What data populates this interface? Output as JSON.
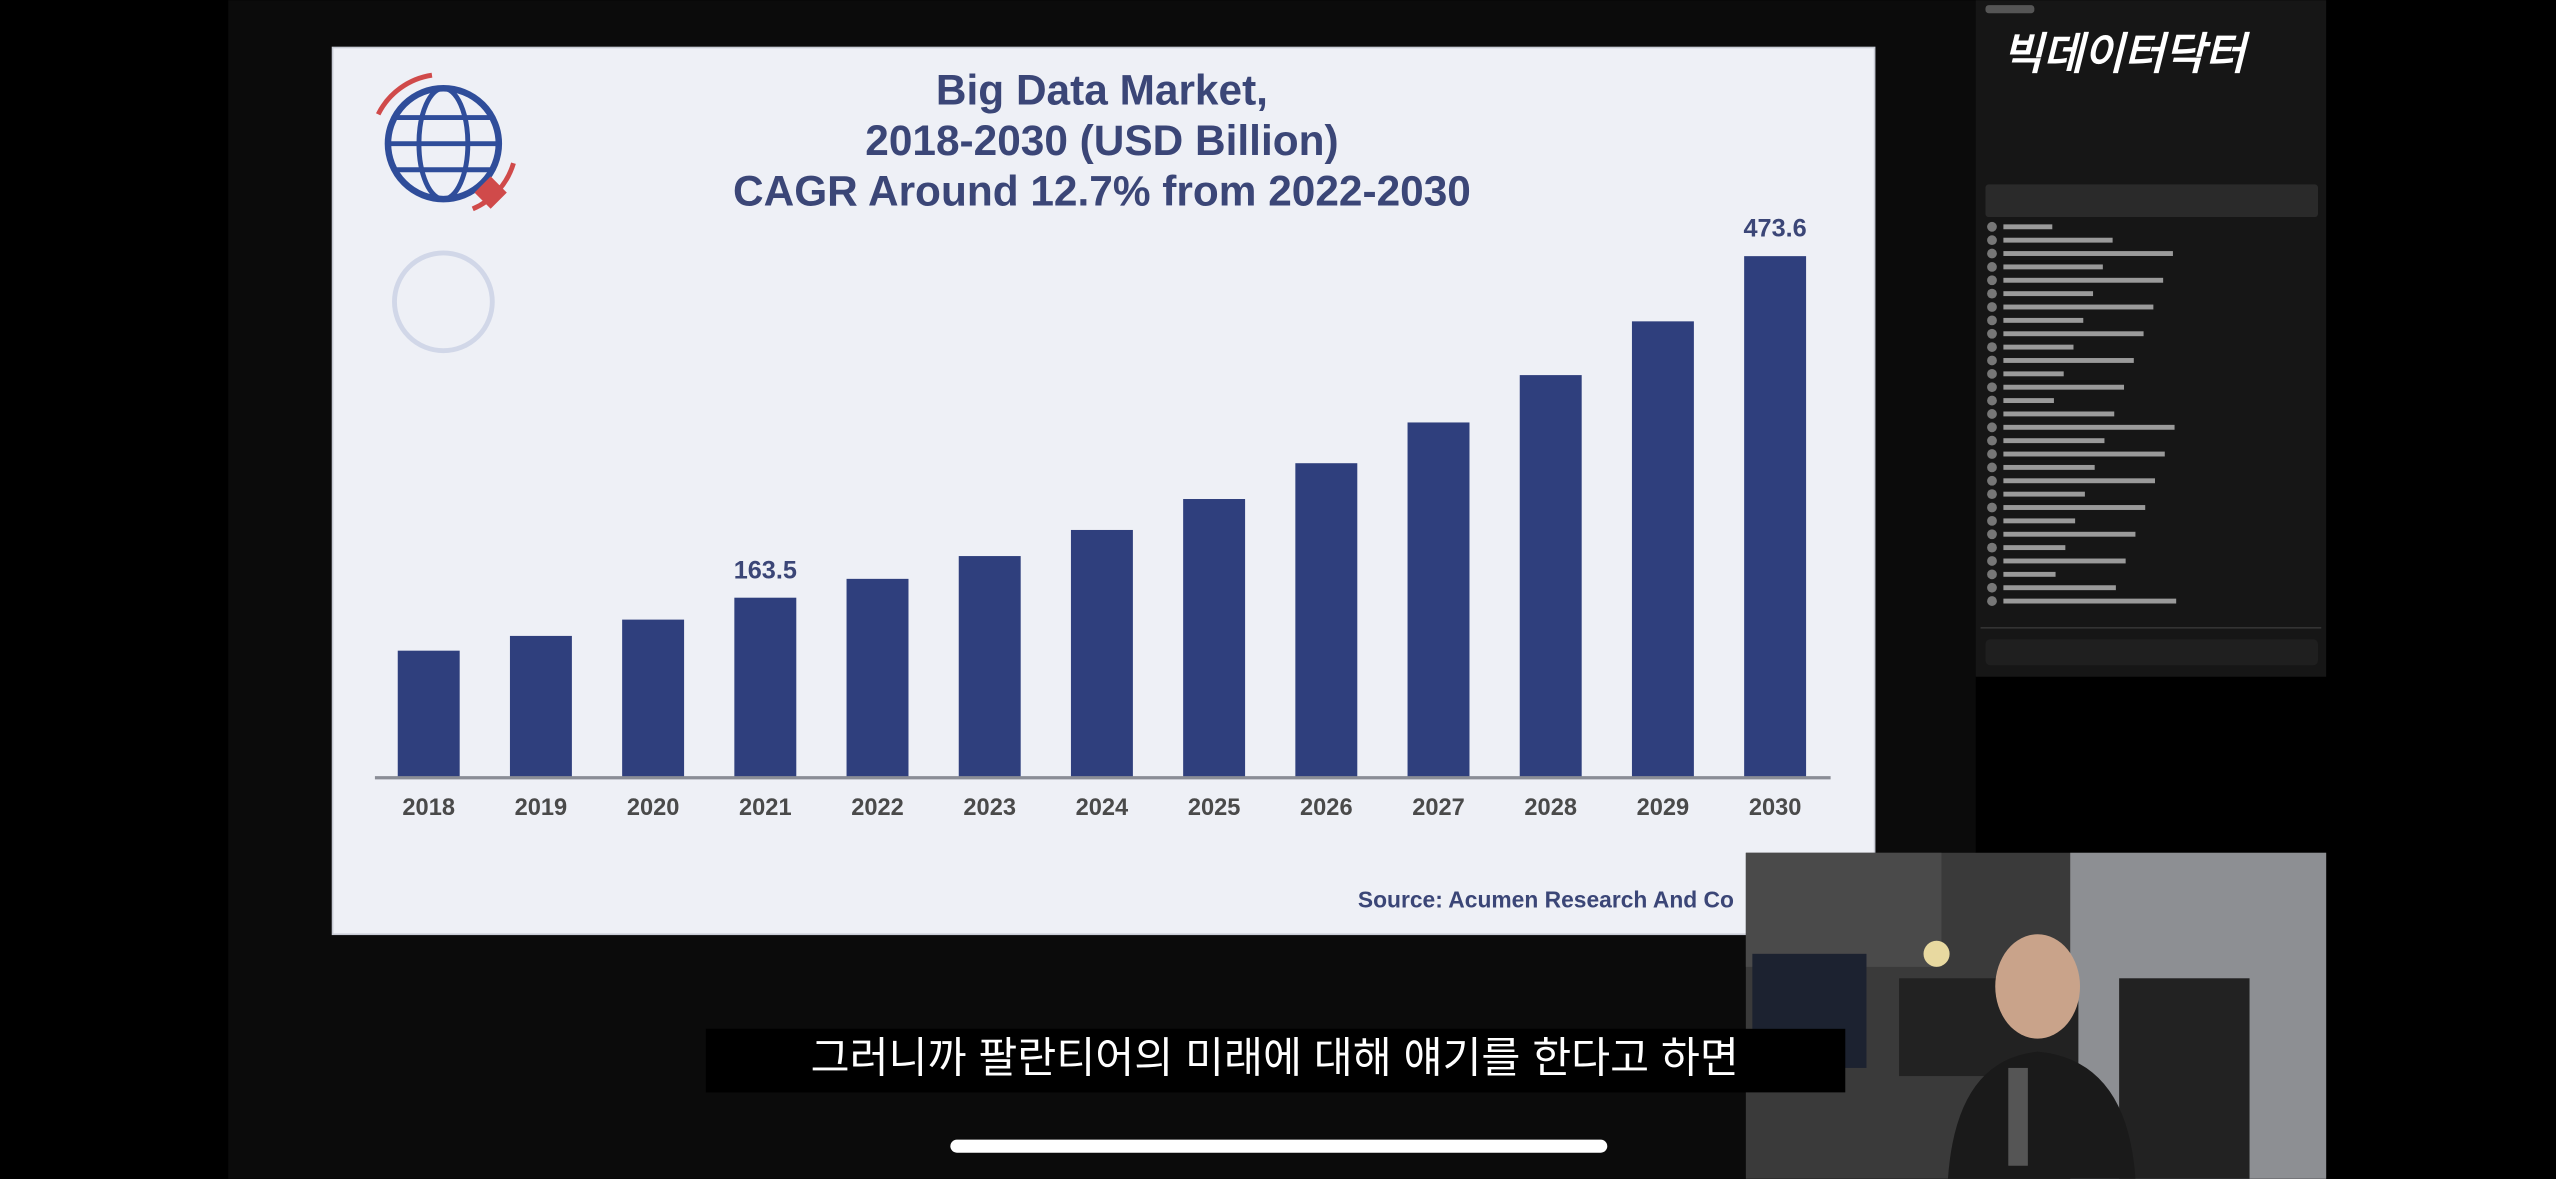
{
  "chart_data": {
    "type": "bar",
    "title": [
      "Big Data Market,",
      "2018-2030 (USD Billion)",
      "CAGR Around 12.7% from 2022-2030"
    ],
    "source": "Source: Acumen Research And Co",
    "categories": [
      "2018",
      "2019",
      "2020",
      "2021",
      "2022",
      "2023",
      "2024",
      "2025",
      "2026",
      "2027",
      "2028",
      "2029",
      "2030"
    ],
    "values": [
      115.4,
      128.8,
      143.6,
      163.5,
      180.6,
      201.3,
      225.0,
      253.1,
      285.6,
      322.6,
      365.6,
      414.4,
      473.6
    ],
    "value_labels": [
      null,
      null,
      null,
      "163.5",
      null,
      null,
      null,
      null,
      null,
      null,
      null,
      null,
      "473.6"
    ],
    "color": "#2f3f7d"
  },
  "stream": {
    "channel": "빅데이터닥터",
    "caption": "그러니까 팔란티어의 미래에 대해 얘기를 한다고 하면"
  }
}
